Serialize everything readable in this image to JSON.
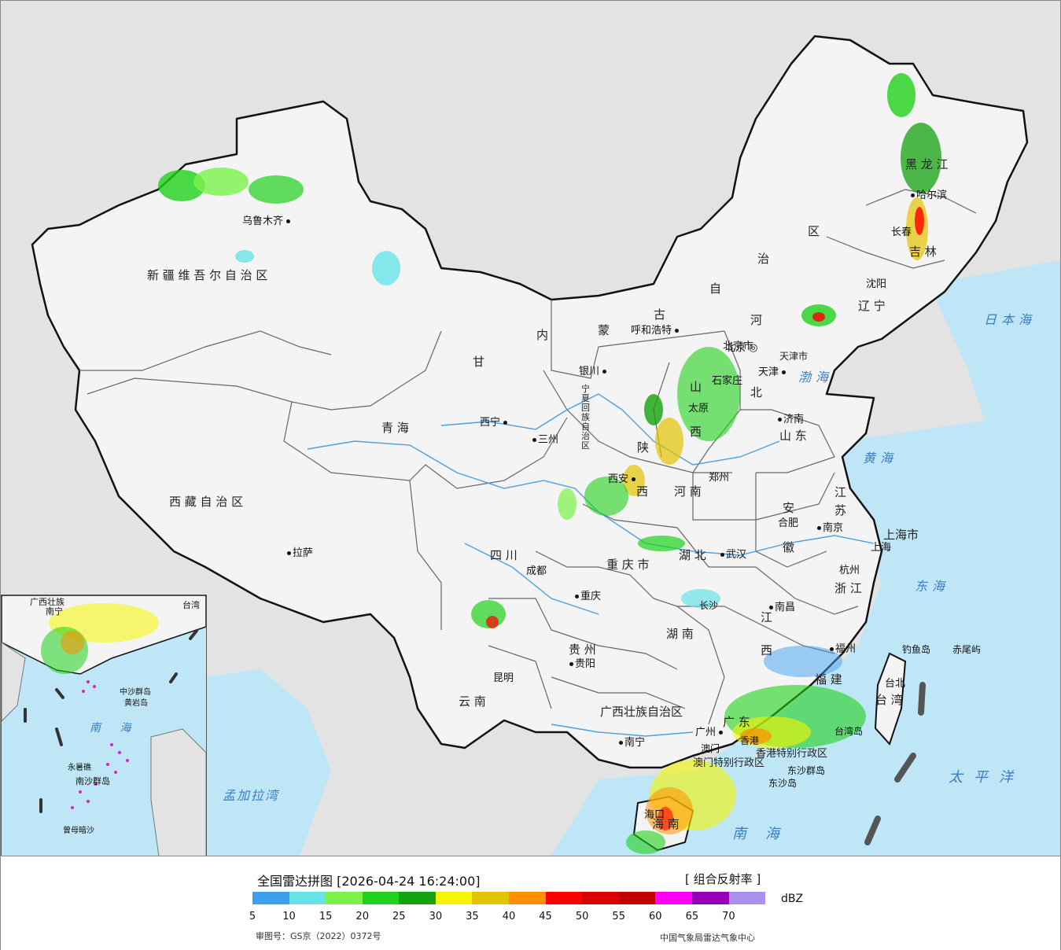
{
  "header": {
    "title": "全国雷达拼图 [2026-04-24 16:24:00]",
    "product": "[ 组合反射率 ]",
    "unit": "dBZ",
    "approval": "审图号：GS京（2022）0372号",
    "source": "中国气象局雷达气象中心"
  },
  "scale": {
    "colors": [
      "#3c9ff0",
      "#67e3e8",
      "#7af24a",
      "#1fd11b",
      "#14a30f",
      "#f5f500",
      "#e3c300",
      "#ff8e00",
      "#ff0000",
      "#d90000",
      "#c20000",
      "#ff00f5",
      "#9600b4",
      "#ad8ff0"
    ],
    "ticks": [
      "5",
      "10",
      "15",
      "20",
      "25",
      "30",
      "35",
      "40",
      "45",
      "50",
      "55",
      "60",
      "65",
      "70"
    ]
  },
  "colors": {
    "ocean": "#bfe6f7",
    "land": "#f2f2f2",
    "outside": "#e3e3e3",
    "border": "#111111"
  },
  "provinces": [
    {
      "id": "xinjiang",
      "name": "新 疆 维 吾 尔 自 治 区"
    },
    {
      "id": "xizang",
      "name": "西 藏 自 治 区"
    },
    {
      "id": "qinghai",
      "name": "青      海"
    },
    {
      "id": "gansu",
      "name": "甘"
    },
    {
      "id": "neimenggu-1",
      "name": "内"
    },
    {
      "id": "neimenggu-2",
      "name": "蒙"
    },
    {
      "id": "neimenggu-3",
      "name": "古"
    },
    {
      "id": "neimenggu-4",
      "name": "自"
    },
    {
      "id": "neimenggu-5",
      "name": "治"
    },
    {
      "id": "neimenggu-6",
      "name": "区"
    },
    {
      "id": "heilongjiang",
      "name": "黑   龙   江"
    },
    {
      "id": "jilin",
      "name": "吉     林"
    },
    {
      "id": "liaoning",
      "name": "辽    宁"
    },
    {
      "id": "hebei-1",
      "name": "河"
    },
    {
      "id": "hebei-2",
      "name": "北"
    },
    {
      "id": "shanxi-1",
      "name": "山"
    },
    {
      "id": "shanxi-2",
      "name": "西"
    },
    {
      "id": "shaanxi-1",
      "name": "陕"
    },
    {
      "id": "shaanxi-2",
      "name": "西"
    },
    {
      "id": "henan",
      "name": "河      南"
    },
    {
      "id": "shandong",
      "name": "山 东"
    },
    {
      "id": "jiangsu-1",
      "name": "江"
    },
    {
      "id": "jiangsu-2",
      "name": "苏"
    },
    {
      "id": "anhui-1",
      "name": "安"
    },
    {
      "id": "anhui-2",
      "name": "徽"
    },
    {
      "id": "shanghai",
      "name": "上海市"
    },
    {
      "id": "zhejiang",
      "name": "浙 江"
    },
    {
      "id": "jiangxi-1",
      "name": "江"
    },
    {
      "id": "jiangxi-2",
      "name": "西"
    },
    {
      "id": "fujian",
      "name": "福 建"
    },
    {
      "id": "taiwan",
      "name": "台 湾"
    },
    {
      "id": "hubei",
      "name": "湖      北"
    },
    {
      "id": "hunan",
      "name": "湖   南"
    },
    {
      "id": "sichuan",
      "name": "四      川"
    },
    {
      "id": "chongqing",
      "name": "重 庆 市"
    },
    {
      "id": "guizhou",
      "name": "贵    州"
    },
    {
      "id": "yunnan",
      "name": "云       南"
    },
    {
      "id": "guangxi",
      "name": "广西壮族自治区"
    },
    {
      "id": "guangdong",
      "name": "广 东"
    },
    {
      "id": "hainan",
      "name": "海 南"
    },
    {
      "id": "ningxia",
      "name": "宁夏回族自治区"
    },
    {
      "id": "beijing",
      "name": "北京市"
    },
    {
      "id": "tianjin",
      "name": "天津市"
    },
    {
      "id": "xianggang",
      "name": "香港特别行政区"
    },
    {
      "id": "aomen",
      "name": "澳门特别行政区"
    }
  ],
  "cities": [
    {
      "id": "urumqi",
      "name": "乌鲁木齐"
    },
    {
      "id": "lhasa",
      "name": "拉萨"
    },
    {
      "id": "xining",
      "name": "西宁"
    },
    {
      "id": "lanzhou",
      "name": "三州"
    },
    {
      "id": "yinchuan",
      "name": "银川"
    },
    {
      "id": "hohhot",
      "name": "呼和浩特"
    },
    {
      "id": "harbin",
      "name": "哈尔滨"
    },
    {
      "id": "changchun",
      "name": "长春"
    },
    {
      "id": "shenyang",
      "name": "沈阳"
    },
    {
      "id": "beijing",
      "name": "北京"
    },
    {
      "id": "tianjin",
      "name": "天津"
    },
    {
      "id": "shijiazhuang",
      "name": "石家庄"
    },
    {
      "id": "taiyuan",
      "name": "太原"
    },
    {
      "id": "jinan",
      "name": "济南"
    },
    {
      "id": "zhengzhou",
      "name": "郑州"
    },
    {
      "id": "xian",
      "name": "西安"
    },
    {
      "id": "hefei",
      "name": "合肥"
    },
    {
      "id": "nanjing",
      "name": "南京"
    },
    {
      "id": "shanghai",
      "name": "上海"
    },
    {
      "id": "hangzhou",
      "name": "杭州"
    },
    {
      "id": "wuhan",
      "name": "武汉"
    },
    {
      "id": "nanchang",
      "name": "南昌"
    },
    {
      "id": "fuzhou",
      "name": "福州"
    },
    {
      "id": "taibei",
      "name": "台北"
    },
    {
      "id": "chengdu",
      "name": "成都"
    },
    {
      "id": "chongqing",
      "name": "重庆"
    },
    {
      "id": "guiyang",
      "name": "贵阳"
    },
    {
      "id": "changsha",
      "name": "长沙"
    },
    {
      "id": "kunming",
      "name": "昆明"
    },
    {
      "id": "nanning",
      "name": "南宁"
    },
    {
      "id": "guangzhou",
      "name": "广州"
    },
    {
      "id": "haikou",
      "name": "海口"
    },
    {
      "id": "xianggang",
      "name": "香港"
    },
    {
      "id": "aomen",
      "name": "澳门"
    }
  ],
  "seas": [
    {
      "id": "bohai",
      "name": "渤海"
    },
    {
      "id": "huanghai",
      "name": "黄海"
    },
    {
      "id": "donghai",
      "name": "东海"
    },
    {
      "id": "nanhai",
      "name": "南海"
    },
    {
      "id": "ribenhai",
      "name": "日本海"
    },
    {
      "id": "taipingyang",
      "name": "太平洋"
    },
    {
      "id": "mengjialawan",
      "name": "孟加拉湾"
    }
  ],
  "islands": [
    {
      "id": "diaoyudao",
      "name": "钓鱼岛"
    },
    {
      "id": "chiweiyu",
      "name": "赤尾屿"
    },
    {
      "id": "dongshaqundao",
      "name": "东沙群岛"
    },
    {
      "id": "dongshadao",
      "name": "东沙岛"
    },
    {
      "id": "taiwandao",
      "name": "台湾岛"
    }
  ],
  "inset": {
    "labels": [
      {
        "id": "inset-guangxi",
        "name": "广西壮族"
      },
      {
        "id": "inset-nanning",
        "name": "南宁"
      },
      {
        "id": "inset-taiwan",
        "name": "台湾"
      },
      {
        "id": "inset-zhongsha",
        "name": "中沙群岛"
      },
      {
        "id": "inset-huangyan",
        "name": "黄岩岛"
      },
      {
        "id": "inset-nanhai",
        "name": "南 海"
      },
      {
        "id": "inset-yongshu",
        "name": "永暑礁"
      },
      {
        "id": "inset-nansha",
        "name": "南沙群岛"
      },
      {
        "id": "inset-zengmu",
        "name": "曾母暗沙"
      }
    ]
  }
}
